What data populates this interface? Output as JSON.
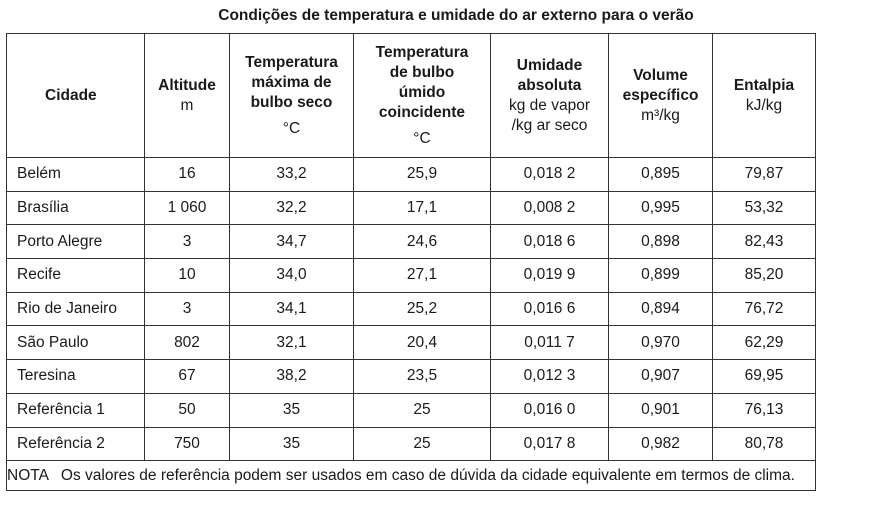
{
  "title": "Condições de temperatura e umidade do ar externo para o verão",
  "header": [
    {
      "bold": [
        "Cidade"
      ],
      "units": []
    },
    {
      "bold": [
        "Altitude"
      ],
      "units": [
        "m"
      ]
    },
    {
      "bold": [
        "Temperatura",
        "máxima de",
        "bulbo seco"
      ],
      "units": [
        "°C"
      ]
    },
    {
      "bold": [
        "Temperatura",
        "de bulbo",
        "úmido",
        "coincidente"
      ],
      "units": [
        "°C"
      ]
    },
    {
      "bold": [
        "Umidade",
        "absoluta"
      ],
      "units": [
        "kg de vapor",
        "/kg ar seco"
      ]
    },
    {
      "bold": [
        "Volume",
        "específico"
      ],
      "units": [
        "m³/kg"
      ]
    },
    {
      "bold": [
        "Entalpia"
      ],
      "units": [
        "kJ/kg"
      ]
    }
  ],
  "rows": [
    [
      "Belém",
      "16",
      "33,2",
      "25,9",
      "0,018 2",
      "0,895",
      "79,87"
    ],
    [
      "Brasília",
      "1 060",
      "32,2",
      "17,1",
      "0,008 2",
      "0,995",
      "53,32"
    ],
    [
      "Porto Alegre",
      "3",
      "34,7",
      "24,6",
      "0,018 6",
      "0,898",
      "82,43"
    ],
    [
      "Recife",
      "10",
      "34,0",
      "27,1",
      "0,019 9",
      "0,899",
      "85,20"
    ],
    [
      "Rio de Janeiro",
      "3",
      "34,1",
      "25,2",
      "0,016 6",
      "0,894",
      "76,72"
    ],
    [
      "São Paulo",
      "802",
      "32,1",
      "20,4",
      "0,011 7",
      "0,970",
      "62,29"
    ],
    [
      "Teresina",
      "67",
      "38,2",
      "23,5",
      "0,012 3",
      "0,907",
      "69,95"
    ],
    [
      "Referência 1",
      "50",
      "35",
      "25",
      "0,016 0",
      "0,901",
      "76,13"
    ],
    [
      "Referência 2",
      "750",
      "35",
      "25",
      "0,017 8",
      "0,982",
      "80,78"
    ]
  ],
  "note": {
    "label": "NOTA",
    "text": "Os valores de referência podem ser usados em caso de dúvida da cidade equivalente em termos de clima."
  }
}
